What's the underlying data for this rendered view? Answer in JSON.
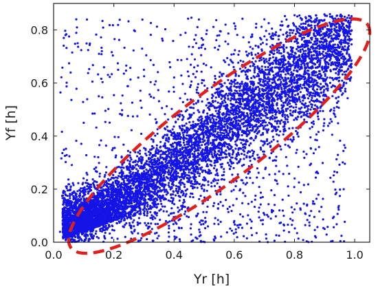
{
  "chart_data": {
    "type": "scatter",
    "title": "",
    "xlabel": "Yr [h]",
    "ylabel": "Yf [h]",
    "xlim": [
      0.0,
      1.05
    ],
    "ylim": [
      0.0,
      0.9
    ],
    "grid": false,
    "x_ticks": [
      "0.0",
      "0.2",
      "0.4",
      "0.6",
      "0.8",
      "1.0"
    ],
    "y_ticks": [
      "0.0",
      "0.2",
      "0.4",
      "0.6",
      "0.8"
    ],
    "marker_color": "#1414e6",
    "series": [
      {
        "points_sample": [
          [
            0.05,
            0.02
          ],
          [
            0.08,
            0.05
          ],
          [
            0.1,
            0.08
          ],
          [
            0.12,
            0.06
          ],
          [
            0.15,
            0.1
          ],
          [
            0.18,
            0.12
          ],
          [
            0.2,
            0.15
          ],
          [
            0.22,
            0.1
          ],
          [
            0.25,
            0.2
          ],
          [
            0.28,
            0.18
          ],
          [
            0.3,
            0.25
          ],
          [
            0.33,
            0.22
          ],
          [
            0.35,
            0.28
          ],
          [
            0.38,
            0.3
          ],
          [
            0.4,
            0.35
          ],
          [
            0.42,
            0.3
          ],
          [
            0.45,
            0.4
          ],
          [
            0.48,
            0.38
          ],
          [
            0.5,
            0.45
          ],
          [
            0.52,
            0.4
          ],
          [
            0.55,
            0.48
          ],
          [
            0.58,
            0.5
          ],
          [
            0.6,
            0.55
          ],
          [
            0.62,
            0.52
          ],
          [
            0.65,
            0.58
          ],
          [
            0.68,
            0.6
          ],
          [
            0.7,
            0.62
          ],
          [
            0.72,
            0.58
          ],
          [
            0.75,
            0.65
          ],
          [
            0.78,
            0.68
          ],
          [
            0.8,
            0.7
          ],
          [
            0.82,
            0.66
          ],
          [
            0.85,
            0.72
          ],
          [
            0.88,
            0.74
          ],
          [
            0.9,
            0.76
          ],
          [
            0.92,
            0.72
          ],
          [
            0.95,
            0.78
          ],
          [
            0.97,
            0.8
          ],
          [
            0.98,
            0.75
          ],
          [
            0.96,
            0.7
          ],
          [
            0.1,
            0.45
          ],
          [
            0.15,
            0.55
          ],
          [
            0.08,
            0.75
          ],
          [
            0.3,
            0.65
          ],
          [
            0.55,
            0.78
          ],
          [
            0.7,
            0.84
          ],
          [
            0.85,
            0.1
          ],
          [
            0.9,
            0.05
          ],
          [
            0.75,
            0.12
          ],
          [
            0.6,
            0.08
          ]
        ]
      }
    ],
    "annotations": [
      {
        "type": "ellipse",
        "style": "dashed",
        "color": "#e0201c",
        "center": [
          0.55,
          0.4
        ],
        "description_value": "highlighted dense region along diagonal"
      }
    ]
  }
}
